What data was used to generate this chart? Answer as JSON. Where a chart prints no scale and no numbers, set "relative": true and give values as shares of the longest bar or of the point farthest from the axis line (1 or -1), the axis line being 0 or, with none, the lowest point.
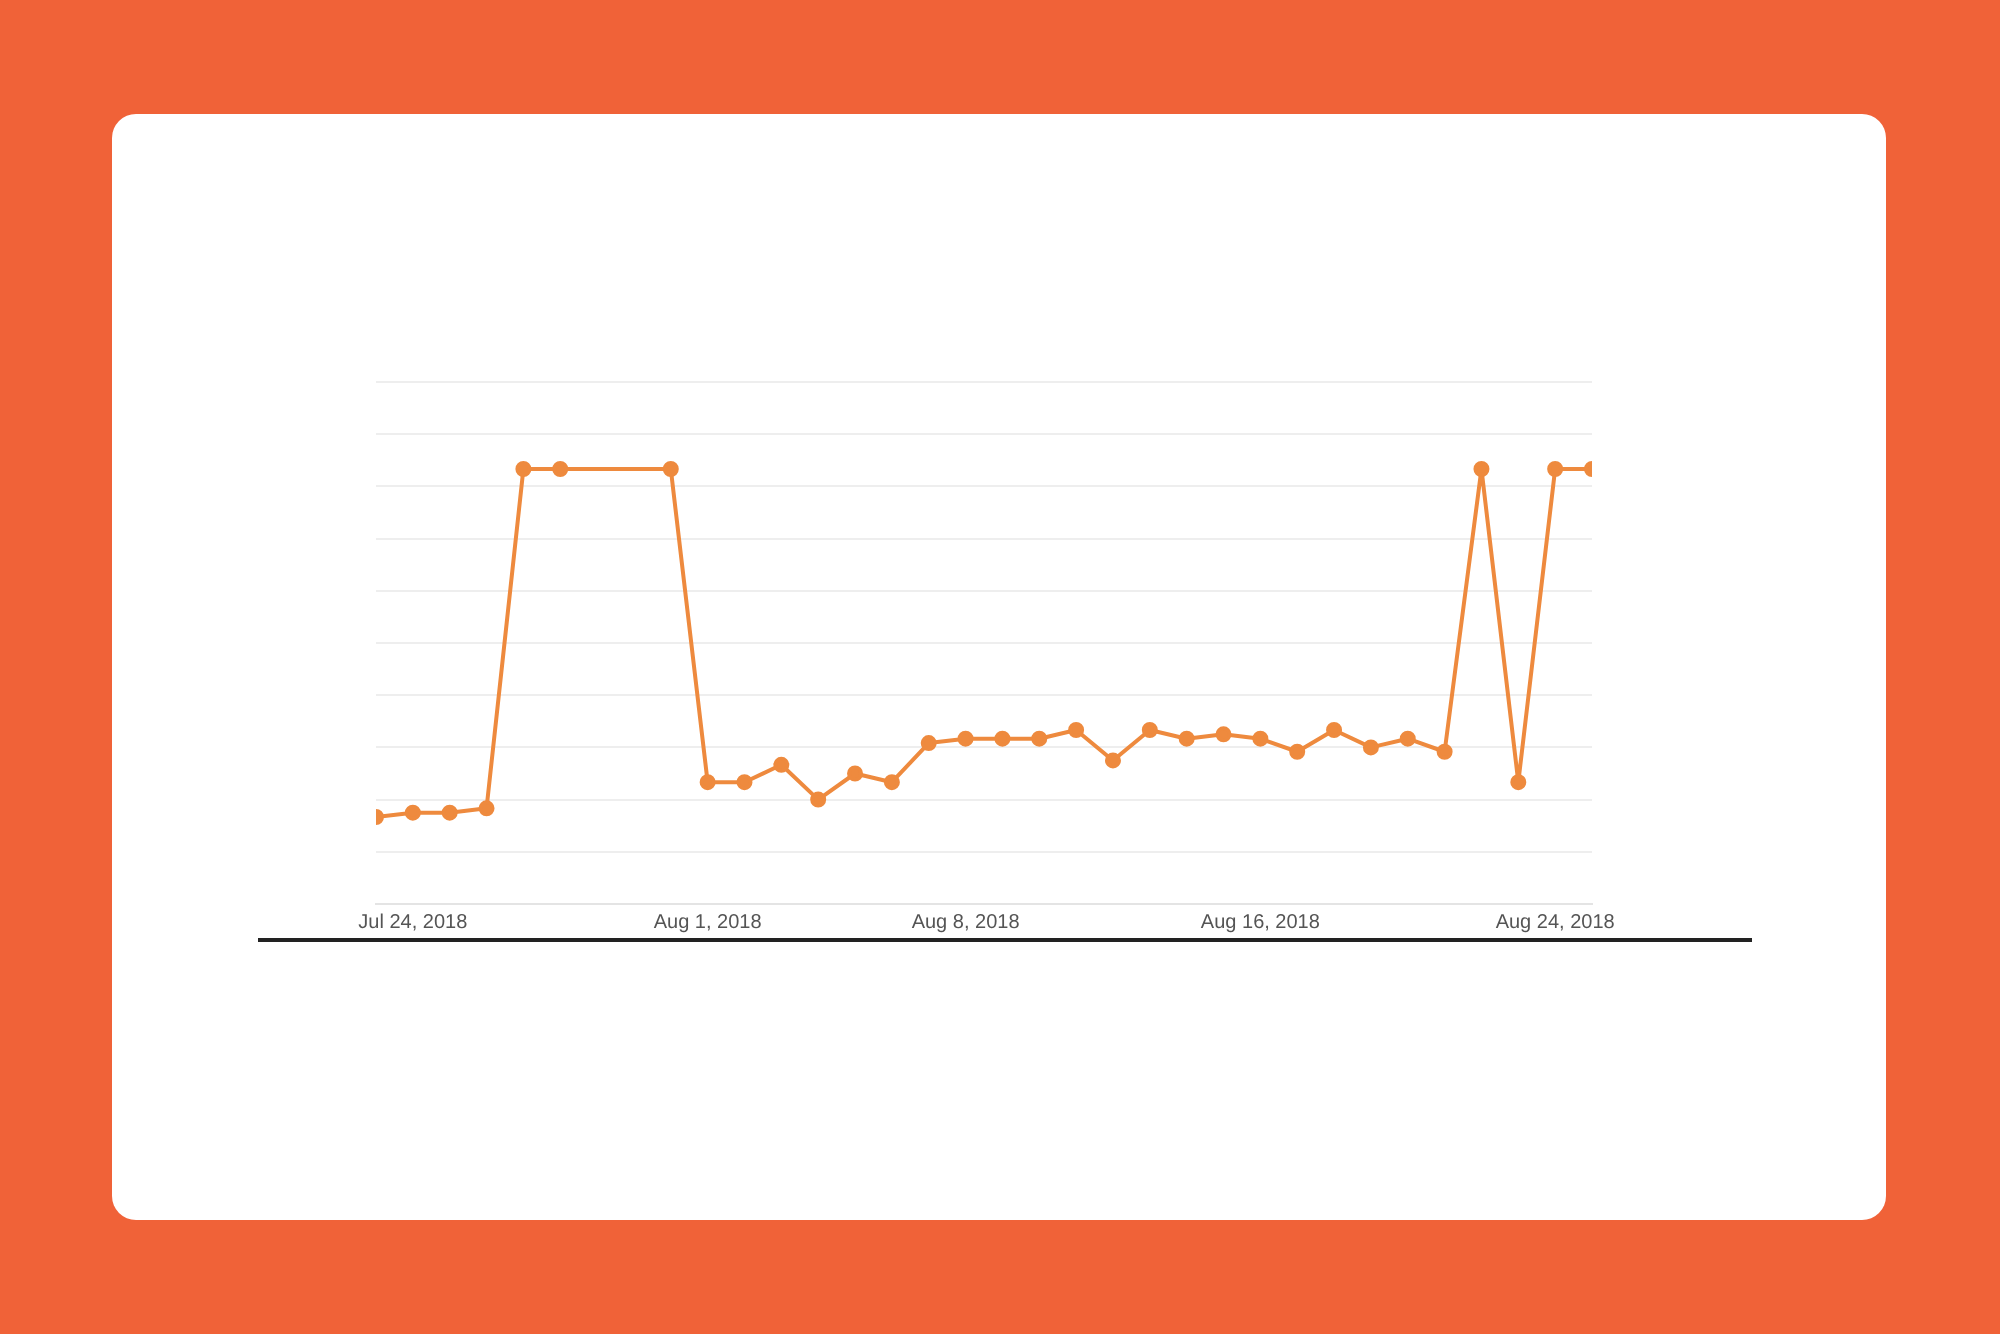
{
  "chart_data": {
    "type": "line",
    "relative": true,
    "color": "#ee8a3e",
    "marker": "circle",
    "grid": "y",
    "legend": false,
    "x": [
      "2018-07-23",
      "2018-07-24",
      "2018-07-25",
      "2018-07-26",
      "2018-07-27",
      "2018-07-28",
      "2018-07-31",
      "2018-08-01",
      "2018-08-02",
      "2018-08-03",
      "2018-08-04",
      "2018-08-05",
      "2018-08-06",
      "2018-08-07",
      "2018-08-08",
      "2018-08-09",
      "2018-08-10",
      "2018-08-11",
      "2018-08-12",
      "2018-08-13",
      "2018-08-14",
      "2018-08-15",
      "2018-08-16",
      "2018-08-17",
      "2018-08-18",
      "2018-08-19",
      "2018-08-20",
      "2018-08-21",
      "2018-08-22",
      "2018-08-23",
      "2018-08-24",
      "2018-08-25"
    ],
    "values": [
      0.2,
      0.21,
      0.21,
      0.22,
      1,
      1,
      1,
      0.28,
      0.28,
      0.32,
      0.24,
      0.3,
      0.28,
      0.37,
      0.38,
      0.38,
      0.38,
      0.4,
      0.33,
      0.4,
      0.38,
      0.39,
      0.38,
      0.35,
      0.4,
      0.36,
      0.38,
      0.35,
      1,
      0.28,
      1,
      1
    ],
    "xlim": [
      "2018-07-23",
      "2018-08-25"
    ],
    "xticks": [
      {
        "value": "2018-07-24",
        "label": "Jul 24, 2018"
      },
      {
        "value": "2018-08-01",
        "label": "Aug 1, 2018"
      },
      {
        "value": "2018-08-08",
        "label": "Aug 8, 2018"
      },
      {
        "value": "2018-08-16",
        "label": "Aug 16, 2018"
      },
      {
        "value": "2018-08-24",
        "label": "Aug 24, 2018"
      }
    ]
  }
}
